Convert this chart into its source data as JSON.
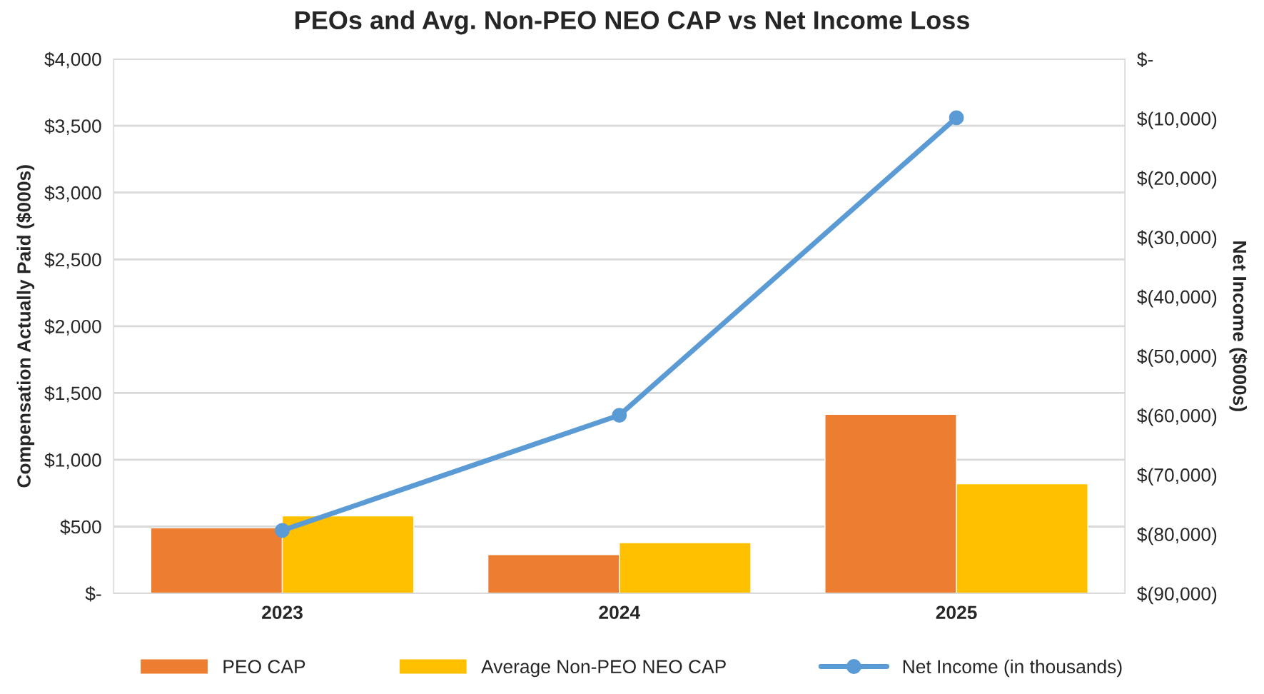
{
  "chart_data": {
    "type": "bar",
    "title": "PEOs and Avg. Non-PEO NEO CAP vs Net Income Loss",
    "ylabel": "Compensation Actually Paid ($000s)",
    "y2label": "Net Income ($000s)",
    "categories": [
      "2023",
      "2024",
      "2025"
    ],
    "series": [
      {
        "name": "PEO CAP",
        "color": "#ed7d31",
        "values": [
          490,
          290,
          1340
        ]
      },
      {
        "name": "Average Non-PEO NEO CAP",
        "color": "#ffc000",
        "values": [
          580,
          380,
          820
        ]
      },
      {
        "name": "Net Income (in thousands)",
        "type": "line",
        "axis": "y2",
        "color": "#5b9bd5",
        "marker": "circle",
        "values": [
          -79400,
          -60000,
          -9900
        ]
      }
    ],
    "ylim": [
      0,
      4000
    ],
    "yticks": [
      {
        "value": 0,
        "label": "$-"
      },
      {
        "value": 500,
        "label": "$500"
      },
      {
        "value": 1000,
        "label": "$1,000"
      },
      {
        "value": 1500,
        "label": "$1,500"
      },
      {
        "value": 2000,
        "label": "$2,000"
      },
      {
        "value": 2500,
        "label": "$2,500"
      },
      {
        "value": 3000,
        "label": "$3,000"
      },
      {
        "value": 3500,
        "label": "$3,500"
      },
      {
        "value": 4000,
        "label": "$4,000"
      }
    ],
    "y2lim": [
      -90000,
      0
    ],
    "y2ticks": [
      {
        "value": -90000,
        "label": "$(90,000)"
      },
      {
        "value": -80000,
        "label": "$(80,000)"
      },
      {
        "value": -70000,
        "label": "$(70,000)"
      },
      {
        "value": -60000,
        "label": "$(60,000)"
      },
      {
        "value": -50000,
        "label": "$(50,000)"
      },
      {
        "value": -40000,
        "label": "$(40,000)"
      },
      {
        "value": -30000,
        "label": "$(30,000)"
      },
      {
        "value": -20000,
        "label": "$(20,000)"
      },
      {
        "value": -10000,
        "label": "$(10,000)"
      },
      {
        "value": 0,
        "label": "$-"
      }
    ],
    "grid": "y",
    "legend": "bottom"
  }
}
